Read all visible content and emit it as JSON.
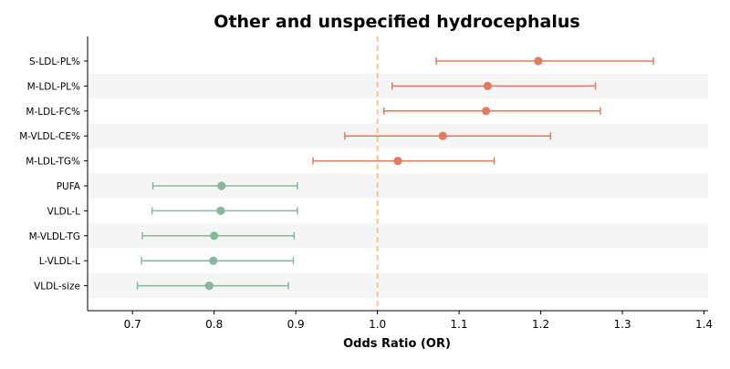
{
  "chart_data": {
    "type": "forest",
    "title": "Other and unspecified hydrocephalus",
    "xlabel": "Odds Ratio (OR)",
    "ylabel": "",
    "xlim": [
      0.645,
      1.405
    ],
    "xticks": [
      0.7,
      0.8,
      0.9,
      1.0,
      1.1,
      1.2,
      1.3,
      1.4
    ],
    "xtick_labels": [
      "0.7",
      "0.8",
      "0.9",
      "1.0",
      "1.1",
      "1.2",
      "1.3",
      "1.4"
    ],
    "reference_line": 1.0,
    "grid": false,
    "row_banding": true,
    "colors": {
      "positive": "#e07b62",
      "negative": "#86b89c",
      "reference": "#f5c37a",
      "band": "#f5f5f5",
      "axis": "#000000"
    },
    "rows": [
      {
        "label": "S-LDL-PL%",
        "or": 1.197,
        "lower": 1.072,
        "upper": 1.338,
        "group": "positive"
      },
      {
        "label": "M-LDL-PL%",
        "or": 1.135,
        "lower": 1.018,
        "upper": 1.267,
        "group": "positive"
      },
      {
        "label": "M-LDL-FC%",
        "or": 1.133,
        "lower": 1.008,
        "upper": 1.273,
        "group": "positive"
      },
      {
        "label": "M-VLDL-CE%",
        "or": 1.08,
        "lower": 0.96,
        "upper": 1.212,
        "group": "positive"
      },
      {
        "label": "M-LDL-TG%",
        "or": 1.025,
        "lower": 0.921,
        "upper": 1.143,
        "group": "positive"
      },
      {
        "label": "PUFA",
        "or": 0.809,
        "lower": 0.725,
        "upper": 0.902,
        "group": "negative"
      },
      {
        "label": "VLDL-L",
        "or": 0.808,
        "lower": 0.724,
        "upper": 0.902,
        "group": "negative"
      },
      {
        "label": "M-VLDL-TG",
        "or": 0.8,
        "lower": 0.712,
        "upper": 0.898,
        "group": "negative"
      },
      {
        "label": "L-VLDL-L",
        "or": 0.799,
        "lower": 0.711,
        "upper": 0.897,
        "group": "negative"
      },
      {
        "label": "VLDL-size",
        "or": 0.794,
        "lower": 0.706,
        "upper": 0.891,
        "group": "negative"
      }
    ]
  }
}
